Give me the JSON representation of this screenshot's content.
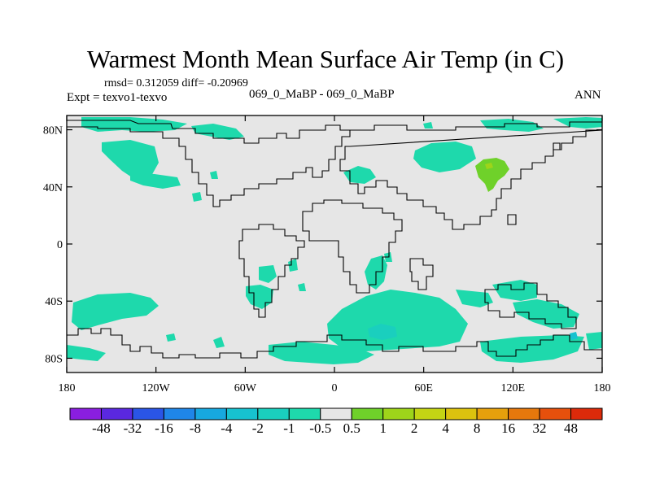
{
  "title": "Warmest Month Mean Surface Air Temp (in C)",
  "stats": "rmsd= 0.312059 diff= -0.20969",
  "expt": "Expt = texvo1-texvo",
  "runs": "069_0_MaBP - 069_0_MaBP",
  "season": "ANN",
  "map": {
    "background_color": "#e6e6e6",
    "y_ticks": [
      {
        "lat": 80,
        "label": "80N"
      },
      {
        "lat": 40,
        "label": "40N"
      },
      {
        "lat": 0,
        "label": "0"
      },
      {
        "lat": -40,
        "label": "40S"
      },
      {
        "lat": -80,
        "label": "80S"
      }
    ],
    "x_ticks": [
      {
        "lon": -180,
        "label": "180"
      },
      {
        "lon": -120,
        "label": "120W"
      },
      {
        "lon": -60,
        "label": "60W"
      },
      {
        "lon": 0,
        "label": "0"
      },
      {
        "lon": 60,
        "label": "60E"
      },
      {
        "lon": 120,
        "label": "120E"
      },
      {
        "lon": 180,
        "label": "180"
      }
    ]
  },
  "colorbar": {
    "labels": [
      "-48",
      "-32",
      "-16",
      "-8",
      "-4",
      "-2",
      "-1",
      "-0.5",
      "0.5",
      "1",
      "2",
      "4",
      "8",
      "16",
      "32",
      "48"
    ],
    "colors": [
      "#8a1ee0",
      "#5a28e0",
      "#2a55e6",
      "#1f86e8",
      "#17a8e0",
      "#17c2d0",
      "#1acfbe",
      "#1ed9ac",
      "#e6e6e6",
      "#6fd12a",
      "#9ed41a",
      "#c4d414",
      "#dcc20e",
      "#e6a00c",
      "#e6780c",
      "#e6500c",
      "#dc2a0a"
    ]
  }
}
